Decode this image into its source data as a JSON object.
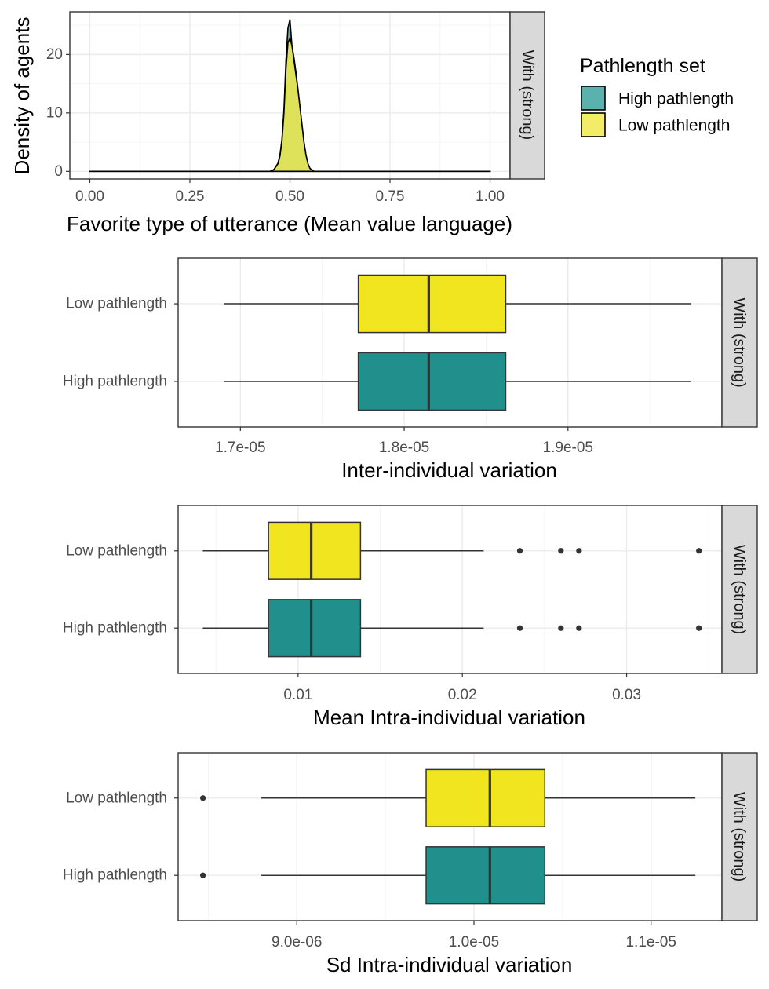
{
  "colors": {
    "high": "#21908C",
    "high_density": "#5AB1AE",
    "low": "#F0E51E",
    "low_density": "#E8E653",
    "grid_major": "#EBEBEB",
    "grid_minor": "#F5F5F5",
    "strip_bg": "#D9D9D9",
    "panel_border": "#333333"
  },
  "legend": {
    "title": "Pathlength set",
    "items": [
      {
        "label": "High pathlength",
        "color": "#5AB1AE"
      },
      {
        "label": "Low pathlength",
        "color": "#F2EC69"
      }
    ]
  },
  "chart_data": [
    {
      "type": "area",
      "strip": "With (strong)",
      "xlabel": "Favorite type of utterance (Mean value language)",
      "ylabel": "Density of agents",
      "xlim": [
        -0.05,
        1.05
      ],
      "ylim": [
        -1.3,
        27.3
      ],
      "x_ticks": [
        0,
        0.25,
        0.5,
        0.75,
        1
      ],
      "x_tick_labels": [
        "0.00",
        "0.25",
        "0.50",
        "0.75",
        "1.00"
      ],
      "y_ticks": [
        0,
        10,
        20
      ],
      "y_tick_labels": [
        "0",
        "10",
        "20"
      ],
      "series": [
        {
          "name": "High pathlength",
          "x": [
            0,
            0.45,
            0.46,
            0.47,
            0.475,
            0.48,
            0.485,
            0.49,
            0.495,
            0.5,
            0.505,
            0.51,
            0.515,
            0.52,
            0.525,
            0.53,
            0.535,
            0.54,
            0.545,
            0.55,
            0.56,
            1
          ],
          "y": [
            0,
            0,
            0.3,
            1.4,
            2.8,
            5.5,
            10.5,
            19.0,
            24.5,
            26.0,
            21.5,
            19.5,
            17.0,
            14.0,
            11.0,
            8.0,
            5.0,
            2.8,
            1.3,
            0.5,
            0,
            0
          ]
        },
        {
          "name": "Low pathlength",
          "x": [
            0,
            0.45,
            0.46,
            0.47,
            0.475,
            0.48,
            0.485,
            0.49,
            0.495,
            0.5,
            0.505,
            0.51,
            0.515,
            0.52,
            0.525,
            0.53,
            0.535,
            0.54,
            0.545,
            0.55,
            0.56,
            1
          ],
          "y": [
            0,
            0,
            0.3,
            1.3,
            2.6,
            5.2,
            10.0,
            17.5,
            22.0,
            22.8,
            21.5,
            19.0,
            16.5,
            14.0,
            11.0,
            8.0,
            5.0,
            2.8,
            1.3,
            0.5,
            0,
            0
          ]
        }
      ]
    },
    {
      "type": "box",
      "strip": "With (strong)",
      "xlabel": "Inter-individual variation",
      "xlim": [
        1.662e-05,
        1.994e-05
      ],
      "x_ticks": [
        1.7e-05,
        1.8e-05,
        1.9e-05
      ],
      "x_tick_labels": [
        "1.7e-05",
        "1.8e-05",
        "1.9e-05"
      ],
      "categories": [
        "Low pathlength",
        "High pathlength"
      ],
      "boxes": [
        {
          "name": "Low pathlength",
          "min": 1.69e-05,
          "q1": 1.772e-05,
          "median": 1.815e-05,
          "q3": 1.862e-05,
          "max": 1.975e-05,
          "outliers": []
        },
        {
          "name": "High pathlength",
          "min": 1.69e-05,
          "q1": 1.772e-05,
          "median": 1.815e-05,
          "q3": 1.862e-05,
          "max": 1.975e-05,
          "outliers": []
        }
      ]
    },
    {
      "type": "box",
      "strip": "With (strong)",
      "xlabel": "Mean Intra-individual variation",
      "xlim": [
        0.0027,
        0.0358
      ],
      "x_ticks": [
        0.01,
        0.02,
        0.03
      ],
      "x_tick_labels": [
        "0.01",
        "0.02",
        "0.03"
      ],
      "categories": [
        "Low pathlength",
        "High pathlength"
      ],
      "boxes": [
        {
          "name": "Low pathlength",
          "min": 0.0042,
          "q1": 0.0082,
          "median": 0.0108,
          "q3": 0.0138,
          "max": 0.0213,
          "outliers": [
            0.0235,
            0.026,
            0.0271,
            0.0344
          ]
        },
        {
          "name": "High pathlength",
          "min": 0.0042,
          "q1": 0.0082,
          "median": 0.0108,
          "q3": 0.0138,
          "max": 0.0213,
          "outliers": [
            0.0235,
            0.026,
            0.0271,
            0.0344
          ]
        }
      ]
    },
    {
      "type": "box",
      "strip": "With (strong)",
      "xlabel": "Sd Intra-individual variation",
      "xlim": [
        8.33e-06,
        1.14e-05
      ],
      "x_ticks": [
        9e-06,
        1e-05,
        1.1e-05
      ],
      "x_tick_labels": [
        "9.0e-06",
        "1.0e-05",
        "1.1e-05"
      ],
      "categories": [
        "Low pathlength",
        "High pathlength"
      ],
      "boxes": [
        {
          "name": "Low pathlength",
          "min": 8.8e-06,
          "q1": 9.73e-06,
          "median": 1.009e-05,
          "q3": 1.04e-05,
          "max": 1.125e-05,
          "outliers": [
            8.47e-06
          ]
        },
        {
          "name": "High pathlength",
          "min": 8.8e-06,
          "q1": 9.73e-06,
          "median": 1.009e-05,
          "q3": 1.04e-05,
          "max": 1.125e-05,
          "outliers": [
            8.47e-06
          ]
        }
      ]
    }
  ]
}
